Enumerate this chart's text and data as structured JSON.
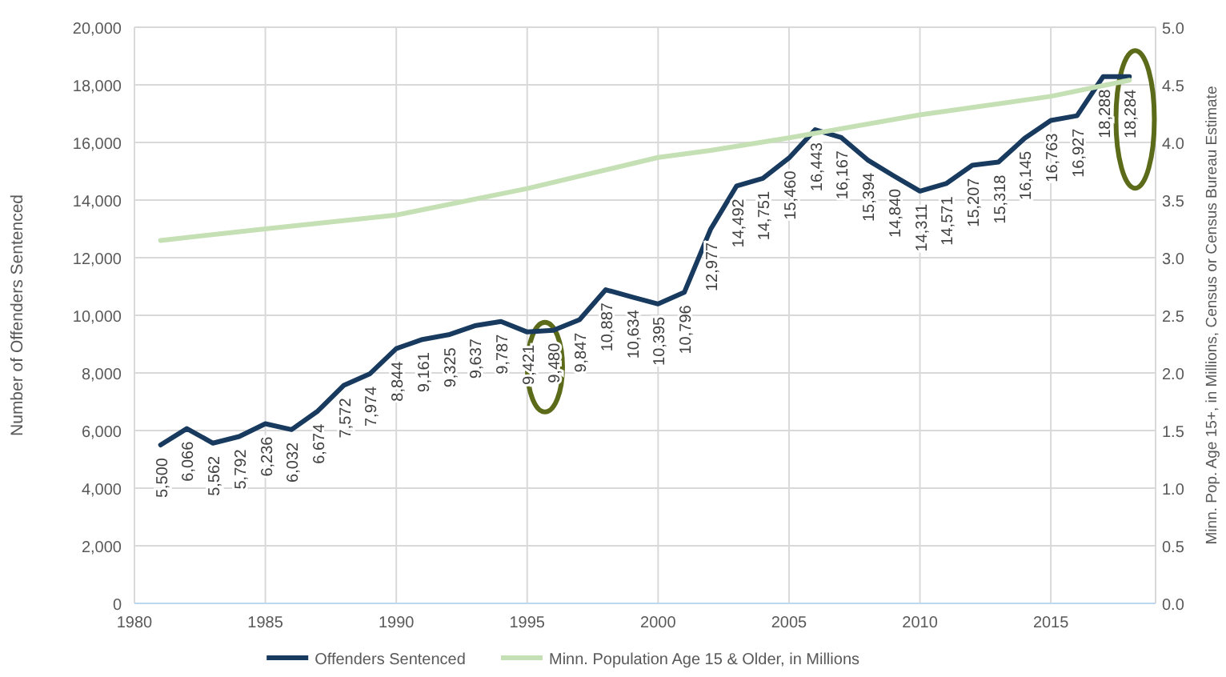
{
  "chart_data": {
    "type": "line",
    "ylabel": "Number of Offenders Sentenced",
    "y2label": "Minn. Pop. Age 15+, in Millions, Census or Census Bureau Estimate",
    "xlim": [
      1980,
      2019
    ],
    "xticks": [
      1980,
      1985,
      1990,
      1995,
      2000,
      2005,
      2010,
      2015
    ],
    "ylim": [
      0,
      20000
    ],
    "yticks": [
      {
        "value": 0,
        "label": "0"
      },
      {
        "value": 2000,
        "label": "2,000"
      },
      {
        "value": 4000,
        "label": "4,000"
      },
      {
        "value": 6000,
        "label": "6,000"
      },
      {
        "value": 8000,
        "label": "8,000"
      },
      {
        "value": 10000,
        "label": "10,000"
      },
      {
        "value": 12000,
        "label": "12,000"
      },
      {
        "value": 14000,
        "label": "14,000"
      },
      {
        "value": 16000,
        "label": "16,000"
      },
      {
        "value": 18000,
        "label": "18,000"
      },
      {
        "value": 20000,
        "label": "20,000"
      }
    ],
    "y2lim": [
      0,
      5
    ],
    "y2ticks": [
      {
        "value": 0,
        "label": "0.0"
      },
      {
        "value": 0.5,
        "label": "0.5"
      },
      {
        "value": 1,
        "label": "1.0"
      },
      {
        "value": 1.5,
        "label": "1.5"
      },
      {
        "value": 2,
        "label": "2.0"
      },
      {
        "value": 2.5,
        "label": "2.5"
      },
      {
        "value": 3,
        "label": "3.0"
      },
      {
        "value": 3.5,
        "label": "3.5"
      },
      {
        "value": 4,
        "label": "4.0"
      },
      {
        "value": 4.5,
        "label": "4.5"
      },
      {
        "value": 5,
        "label": "5.0"
      }
    ],
    "grid": true,
    "legend": "bottom",
    "series": [
      {
        "name": "Offenders Sentenced",
        "color": "#173a5e",
        "x": [
          1981,
          1982,
          1983,
          1984,
          1985,
          1986,
          1987,
          1988,
          1989,
          1990,
          1991,
          1992,
          1993,
          1994,
          1995,
          1996,
          1997,
          1998,
          1999,
          2000,
          2001,
          2002,
          2003,
          2004,
          2005,
          2006,
          2007,
          2008,
          2009,
          2010,
          2011,
          2012,
          2013,
          2014,
          2015,
          2016,
          2017,
          2018
        ],
        "values": [
          5500,
          6066,
          5562,
          5792,
          6236,
          6032,
          6674,
          7572,
          7974,
          8844,
          9161,
          9325,
          9637,
          9787,
          9421,
          9480,
          9847,
          10887,
          10634,
          10395,
          10796,
          12977,
          14492,
          14751,
          15460,
          16443,
          16167,
          15394,
          14840,
          14311,
          14571,
          15207,
          15318,
          16145,
          16763,
          16927,
          18288,
          18284
        ],
        "value_labels": [
          "5,500",
          "6,066",
          "5,562",
          "5,792",
          "6,236",
          "6,032",
          "6,674",
          "7,572",
          "7,974",
          "8,844",
          "9,161",
          "9,325",
          "9,637",
          "9,787",
          "9,421",
          "9,480",
          "9,847",
          "10,887",
          "10,634",
          "10,395",
          "10,796",
          "12,977",
          "14,492",
          "14,751",
          "15,460",
          "16,443",
          "16,167",
          "15,394",
          "14,840",
          "14,311",
          "14,571",
          "15,207",
          "15,318",
          "16,145",
          "16,763",
          "16,927",
          "18,288",
          "18,284"
        ]
      },
      {
        "name": "Minn. Population Age 15 & Older, in Millions",
        "color": "#c5e0b4",
        "axis": "y2",
        "x": [
          1981,
          1985,
          1990,
          1995,
          2000,
          2002,
          2005,
          2010,
          2015,
          2018
        ],
        "values": [
          3.15,
          3.25,
          3.37,
          3.6,
          3.87,
          3.93,
          4.04,
          4.24,
          4.4,
          4.54
        ]
      }
    ]
  }
}
